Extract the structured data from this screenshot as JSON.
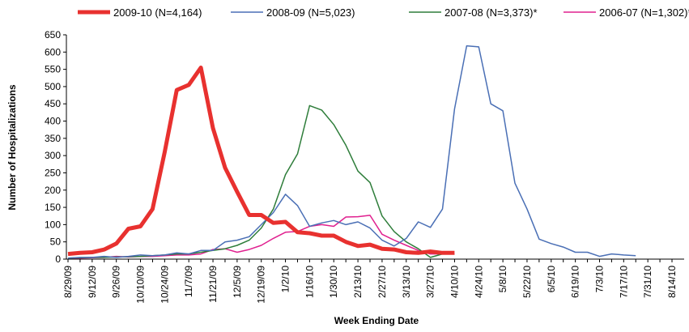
{
  "chart_data": {
    "type": "line",
    "x_label": "Week Ending Date",
    "y_label": "Number of Hospitalizations",
    "categories": [
      "8/29/09",
      null,
      "9/12/09",
      null,
      "9/26/09",
      null,
      "10/10/09",
      null,
      "10/24/09",
      null,
      "11/7/09",
      null,
      "11/21/09",
      null,
      "12/5/09",
      null,
      "12/19/09",
      null,
      "1/2/10",
      null,
      "1/16/10",
      null,
      "1/30/10",
      null,
      "2/13/10",
      null,
      "2/27/10",
      null,
      "3/13/10",
      null,
      "3/27/10",
      null,
      "4/10/10",
      null,
      "4/24/10",
      null,
      "5/8/10",
      null,
      "5/22/10",
      null,
      "6/5/10",
      null,
      "6/19/10",
      null,
      "7/3/10",
      null,
      "7/17/10",
      null,
      "7/31/10",
      null,
      "8/14/10"
    ],
    "ylim": [
      0,
      650
    ],
    "yticks": [
      0,
      50,
      100,
      150,
      200,
      250,
      300,
      350,
      400,
      450,
      500,
      550,
      600,
      650
    ],
    "grid": false,
    "legend": "top",
    "series": [
      {
        "name": "2009-10 (N=4,164)",
        "color": "#e8312f",
        "width": 5,
        "values": [
          15,
          18,
          20,
          28,
          45,
          88,
          95,
          145,
          310,
          490,
          505,
          555,
          380,
          265,
          195,
          128,
          128,
          105,
          108,
          78,
          75,
          68,
          68,
          50,
          38,
          42,
          30,
          28,
          20,
          18,
          22,
          18,
          18,
          null,
          null,
          null,
          null,
          null,
          null,
          null,
          null,
          null,
          null,
          null,
          null,
          null,
          null,
          null,
          null,
          null,
          null
        ]
      },
      {
        "name": "2008-09 (N=5,023)",
        "color": "#4a6fb5",
        "width": 1.5,
        "values": [
          3,
          5,
          5,
          8,
          5,
          8,
          12,
          10,
          12,
          18,
          15,
          25,
          25,
          50,
          55,
          65,
          100,
          135,
          188,
          155,
          95,
          105,
          112,
          100,
          108,
          90,
          55,
          38,
          60,
          108,
          92,
          145,
          435,
          618,
          615,
          450,
          430,
          220,
          145,
          58,
          45,
          35,
          20,
          20,
          8,
          15,
          12,
          10,
          null,
          null,
          null
        ]
      },
      {
        "name": "2007-08 (N=3,373)*",
        "color": "#2e7d3a",
        "width": 1.5,
        "values": [
          3,
          4,
          5,
          5,
          6,
          7,
          8,
          10,
          12,
          15,
          15,
          20,
          25,
          30,
          40,
          55,
          90,
          145,
          245,
          305,
          445,
          432,
          390,
          330,
          255,
          222,
          125,
          80,
          50,
          30,
          5,
          15,
          null,
          null,
          null,
          null,
          null,
          null,
          null,
          null,
          null,
          null,
          null,
          null,
          null,
          null,
          null,
          null,
          null,
          null,
          null
        ]
      },
      {
        "name": "2006-07 (N=1,302)*",
        "color": "#e0208f",
        "width": 1.5,
        "values": [
          3,
          3,
          4,
          5,
          8,
          6,
          8,
          8,
          10,
          12,
          12,
          15,
          28,
          30,
          20,
          28,
          40,
          60,
          78,
          80,
          95,
          100,
          95,
          122,
          123,
          127,
          72,
          55,
          40,
          25,
          15,
          15,
          15,
          null,
          null,
          null,
          null,
          null,
          null,
          null,
          null,
          null,
          null,
          null,
          null,
          null,
          null,
          null,
          null,
          null,
          null
        ]
      }
    ]
  }
}
